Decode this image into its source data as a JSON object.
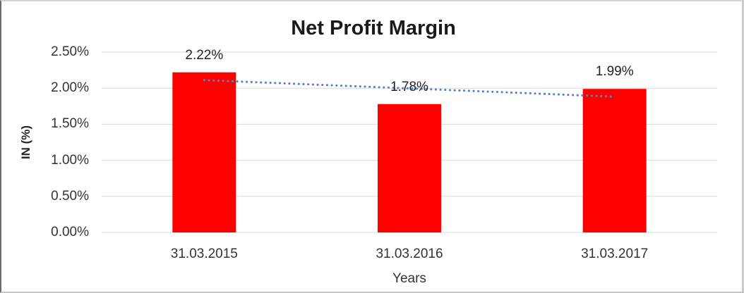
{
  "chart_data": {
    "type": "bar",
    "title": "Net Profit Margin",
    "xlabel": "Years",
    "ylabel": "IN (%)",
    "categories": [
      "31.03.2015",
      "31.03.2016",
      "31.03.2017"
    ],
    "values": [
      2.22,
      1.78,
      1.99
    ],
    "data_labels": [
      "2.22%",
      "1.78%",
      "1.99%"
    ],
    "y_ticks": [
      "0.00%",
      "0.50%",
      "1.00%",
      "1.50%",
      "2.00%",
      "2.50%"
    ],
    "ylim": [
      0,
      2.5
    ],
    "grid": true,
    "legend_position": "none",
    "trendline": {
      "type": "linear",
      "style": "dotted"
    },
    "colors": {
      "bar": "#FF0000",
      "trendline": "#5585C5",
      "gridline": "#D9D9D9",
      "tick_text": "#333333",
      "title_text": "#1A1A1A"
    }
  }
}
